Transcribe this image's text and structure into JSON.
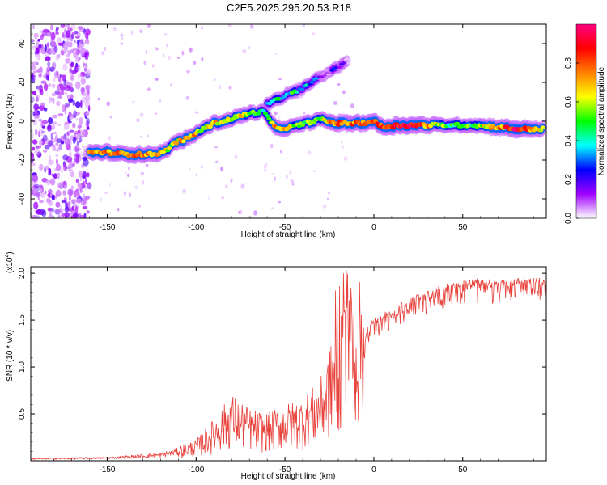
{
  "figure_title": "C2E5.2025.295.20.53.R18",
  "chart_data": [
    {
      "type": "heatmap",
      "title": "",
      "xlabel": "Height of straight line (km)",
      "ylabel": "Frequency (Hz)",
      "xlim": [
        -193,
        97
      ],
      "ylim": [
        -50,
        50
      ],
      "x_ticks": [
        -150,
        -100,
        -50,
        0,
        50
      ],
      "x_tick_labels": [
        "-150",
        "-100",
        "-50",
        "0",
        "50"
      ],
      "y_ticks": [
        -40,
        -20,
        0,
        20,
        40
      ],
      "y_tick_labels": [
        "-40",
        "-20",
        "0",
        "20",
        "40"
      ],
      "colorbar": {
        "label": "Normalized spectral amplitude",
        "range": [
          0,
          1
        ],
        "ticks": [
          0.0,
          0.2,
          0.4,
          0.6,
          0.8
        ],
        "tick_labels": [
          "0.0",
          "0.2",
          "0.4",
          "0.6",
          "0.8"
        ],
        "colormap": [
          "#ffffff",
          "#a000ff",
          "#0000ff",
          "#00ffff",
          "#00ff00",
          "#ffff00",
          "#ff8000",
          "#ff0000",
          "#ff0080"
        ]
      },
      "ridge": [
        {
          "x": -160,
          "y": -16,
          "a": 0.7
        },
        {
          "x": -150,
          "y": -16,
          "a": 0.75
        },
        {
          "x": -140,
          "y": -17,
          "a": 0.7
        },
        {
          "x": -133,
          "y": -17,
          "a": 0.8
        },
        {
          "x": -125,
          "y": -17,
          "a": 0.7
        },
        {
          "x": -118,
          "y": -16,
          "a": 0.6
        },
        {
          "x": -112,
          "y": -11,
          "a": 0.6
        },
        {
          "x": -105,
          "y": -9,
          "a": 0.75
        },
        {
          "x": -98,
          "y": -5,
          "a": 0.65
        },
        {
          "x": -90,
          "y": -1,
          "a": 0.65
        },
        {
          "x": -84,
          "y": 0,
          "a": 0.6
        },
        {
          "x": -78,
          "y": 2,
          "a": 0.65
        },
        {
          "x": -70,
          "y": 4,
          "a": 0.55
        },
        {
          "x": -62,
          "y": 5,
          "a": 0.45
        },
        {
          "x": -55,
          "y": -4,
          "a": 0.7
        },
        {
          "x": -46,
          "y": -3,
          "a": 0.6
        },
        {
          "x": -38,
          "y": -1,
          "a": 0.55
        },
        {
          "x": -30,
          "y": 1,
          "a": 0.6
        },
        {
          "x": -22,
          "y": -1,
          "a": 0.75
        },
        {
          "x": -15,
          "y": -1,
          "a": 0.75
        },
        {
          "x": -8,
          "y": -1,
          "a": 0.8
        },
        {
          "x": 0,
          "y": 0,
          "a": 0.8
        },
        {
          "x": 5,
          "y": -3,
          "a": 0.85
        },
        {
          "x": 15,
          "y": -2,
          "a": 0.9
        },
        {
          "x": 25,
          "y": -2,
          "a": 0.85
        },
        {
          "x": 40,
          "y": -2,
          "a": 0.5
        },
        {
          "x": 55,
          "y": -2,
          "a": 0.5
        },
        {
          "x": 70,
          "y": -3,
          "a": 0.7
        },
        {
          "x": 80,
          "y": -4,
          "a": 0.95
        },
        {
          "x": 95,
          "y": -4,
          "a": 0.6
        }
      ],
      "upper_ridge": [
        {
          "x": -60,
          "y": 9,
          "a": 0.4
        },
        {
          "x": -50,
          "y": 13,
          "a": 0.45
        },
        {
          "x": -40,
          "y": 17,
          "a": 0.4
        },
        {
          "x": -30,
          "y": 23,
          "a": 0.2
        },
        {
          "x": -20,
          "y": 28,
          "a": 0.15
        },
        {
          "x": -15,
          "y": 31,
          "a": 0.12
        }
      ],
      "noise_region": [
        -193,
        -160
      ]
    },
    {
      "type": "line",
      "title": "",
      "xlabel": "Height of straight line (km)",
      "ylabel": "SNR (10 * v/v)",
      "scale_label": "(x10",
      "scale_exponent": "4",
      "scale_suffix": ")",
      "xlim": [
        -193,
        97
      ],
      "ylim": [
        0,
        2.07
      ],
      "x_ticks": [
        -150,
        -100,
        -50,
        0,
        50
      ],
      "x_tick_labels": [
        "-150",
        "-100",
        "-50",
        "0",
        "50"
      ],
      "y_ticks": [
        0.5,
        1.0,
        1.5,
        2.0
      ],
      "y_tick_labels": [
        "0.5",
        "1.0",
        "1.5",
        "2.0"
      ],
      "line_color": "#e8403a",
      "series": [
        {
          "name": "SNR",
          "envelope": [
            {
              "x": -193,
              "y": 0.02
            },
            {
              "x": -150,
              "y": 0.03
            },
            {
              "x": -120,
              "y": 0.06
            },
            {
              "x": -110,
              "y": 0.1
            },
            {
              "x": -100,
              "y": 0.14
            },
            {
              "x": -90,
              "y": 0.28
            },
            {
              "x": -80,
              "y": 0.45
            },
            {
              "x": -70,
              "y": 0.35
            },
            {
              "x": -60,
              "y": 0.32
            },
            {
              "x": -50,
              "y": 0.38
            },
            {
              "x": -40,
              "y": 0.42
            },
            {
              "x": -30,
              "y": 0.55
            },
            {
              "x": -25,
              "y": 0.75
            },
            {
              "x": -20,
              "y": 0.95
            },
            {
              "x": -16,
              "y": 1.15
            },
            {
              "x": -12,
              "y": 1.1
            },
            {
              "x": -8,
              "y": 1.2
            },
            {
              "x": -5,
              "y": 1.4
            },
            {
              "x": 0,
              "y": 1.5
            },
            {
              "x": 10,
              "y": 1.6
            },
            {
              "x": 20,
              "y": 1.72
            },
            {
              "x": 30,
              "y": 1.8
            },
            {
              "x": 40,
              "y": 1.88
            },
            {
              "x": 50,
              "y": 1.9
            },
            {
              "x": 60,
              "y": 1.92
            },
            {
              "x": 70,
              "y": 1.9
            },
            {
              "x": 80,
              "y": 1.95
            },
            {
              "x": 97,
              "y": 1.92
            }
          ]
        }
      ]
    }
  ]
}
